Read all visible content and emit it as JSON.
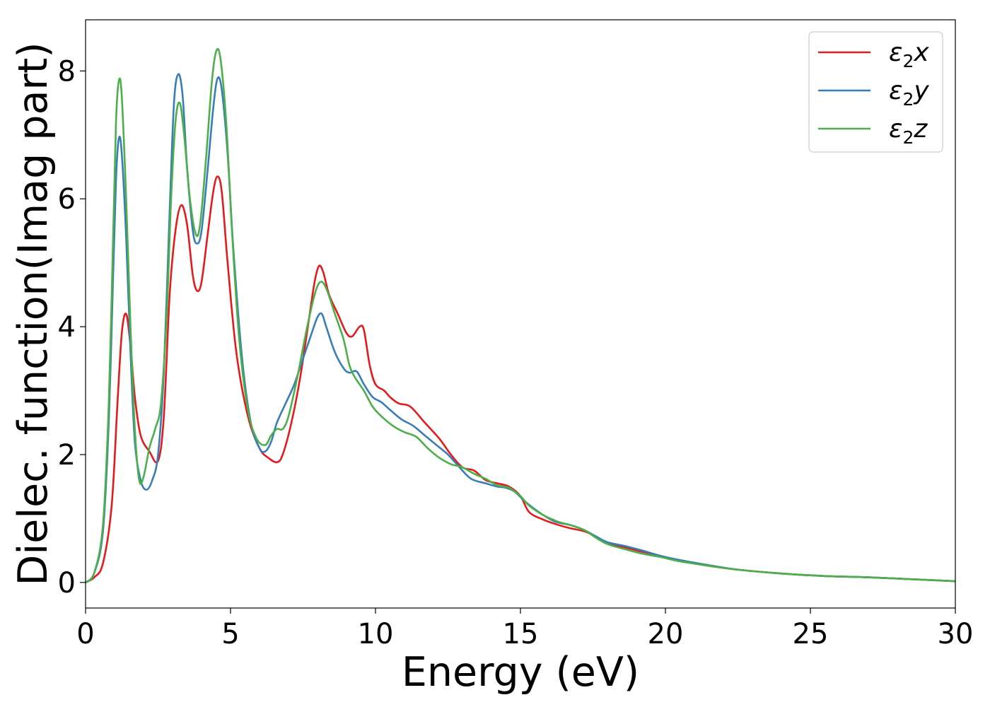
{
  "chart_data": {
    "type": "line",
    "xlabel": "Energy (eV)",
    "ylabel": "Dielec. function(Imag part)",
    "xlim": [
      0,
      30
    ],
    "ylim": [
      -0.4,
      8.8
    ],
    "x_ticks": [
      0,
      5,
      10,
      15,
      20,
      25,
      30
    ],
    "y_ticks": [
      0,
      2,
      4,
      6,
      8
    ],
    "grid": false,
    "legend_position": "top-right",
    "series": [
      {
        "name": "ε₂x",
        "legend_base": "ε",
        "legend_sub": "2",
        "legend_var": "x",
        "color": "#e41a1c",
        "points": [
          [
            0,
            0
          ],
          [
            0.3,
            0.08
          ],
          [
            0.6,
            0.3
          ],
          [
            0.9,
            1.2
          ],
          [
            1.1,
            2.8
          ],
          [
            1.25,
            3.9
          ],
          [
            1.4,
            4.2
          ],
          [
            1.55,
            3.7
          ],
          [
            1.7,
            2.9
          ],
          [
            1.9,
            2.3
          ],
          [
            2.2,
            2.05
          ],
          [
            2.5,
            1.9
          ],
          [
            2.7,
            2.6
          ],
          [
            2.9,
            4.5
          ],
          [
            3.1,
            5.5
          ],
          [
            3.3,
            5.9
          ],
          [
            3.5,
            5.6
          ],
          [
            3.7,
            4.8
          ],
          [
            3.85,
            4.56
          ],
          [
            4.0,
            4.7
          ],
          [
            4.2,
            5.4
          ],
          [
            4.4,
            6.1
          ],
          [
            4.55,
            6.35
          ],
          [
            4.7,
            6.1
          ],
          [
            4.9,
            5.0
          ],
          [
            5.2,
            3.6
          ],
          [
            5.6,
            2.6
          ],
          [
            6.0,
            2.1
          ],
          [
            6.3,
            1.95
          ],
          [
            6.6,
            1.88
          ],
          [
            6.8,
            2.0
          ],
          [
            7.1,
            2.5
          ],
          [
            7.4,
            3.2
          ],
          [
            7.7,
            4.1
          ],
          [
            7.9,
            4.7
          ],
          [
            8.05,
            4.95
          ],
          [
            8.2,
            4.85
          ],
          [
            8.4,
            4.5
          ],
          [
            8.7,
            4.2
          ],
          [
            9.0,
            3.9
          ],
          [
            9.2,
            3.85
          ],
          [
            9.45,
            4.0
          ],
          [
            9.6,
            3.95
          ],
          [
            9.8,
            3.4
          ],
          [
            10.0,
            3.1
          ],
          [
            10.3,
            3.0
          ],
          [
            10.5,
            2.9
          ],
          [
            10.8,
            2.8
          ],
          [
            11.2,
            2.75
          ],
          [
            11.7,
            2.5
          ],
          [
            12.2,
            2.25
          ],
          [
            12.6,
            2.0
          ],
          [
            13.0,
            1.8
          ],
          [
            13.4,
            1.75
          ],
          [
            13.8,
            1.6
          ],
          [
            14.2,
            1.55
          ],
          [
            14.6,
            1.5
          ],
          [
            15.0,
            1.35
          ],
          [
            15.3,
            1.1
          ],
          [
            15.8,
            0.98
          ],
          [
            16.3,
            0.9
          ],
          [
            16.7,
            0.85
          ],
          [
            17.2,
            0.8
          ],
          [
            17.6,
            0.72
          ],
          [
            18.0,
            0.62
          ],
          [
            18.6,
            0.55
          ],
          [
            19.2,
            0.48
          ],
          [
            19.8,
            0.42
          ],
          [
            20.5,
            0.34
          ],
          [
            21.5,
            0.26
          ],
          [
            22.5,
            0.2
          ],
          [
            24,
            0.14
          ],
          [
            25.5,
            0.1
          ],
          [
            27,
            0.08
          ],
          [
            28.5,
            0.05
          ],
          [
            30,
            0.02
          ]
        ]
      },
      {
        "name": "ε₂y",
        "legend_base": "ε",
        "legend_sub": "2",
        "legend_var": "y",
        "color": "#377eb8",
        "points": [
          [
            0,
            0
          ],
          [
            0.3,
            0.15
          ],
          [
            0.6,
            0.8
          ],
          [
            0.8,
            2.5
          ],
          [
            0.95,
            4.8
          ],
          [
            1.05,
            6.3
          ],
          [
            1.15,
            6.95
          ],
          [
            1.25,
            6.7
          ],
          [
            1.4,
            5.4
          ],
          [
            1.55,
            3.6
          ],
          [
            1.7,
            2.2
          ],
          [
            1.9,
            1.6
          ],
          [
            2.1,
            1.45
          ],
          [
            2.3,
            1.6
          ],
          [
            2.5,
            2.0
          ],
          [
            2.7,
            3.3
          ],
          [
            2.9,
            5.8
          ],
          [
            3.05,
            7.5
          ],
          [
            3.2,
            7.95
          ],
          [
            3.35,
            7.6
          ],
          [
            3.5,
            6.5
          ],
          [
            3.7,
            5.5
          ],
          [
            3.85,
            5.3
          ],
          [
            4.0,
            5.5
          ],
          [
            4.2,
            6.4
          ],
          [
            4.4,
            7.4
          ],
          [
            4.55,
            7.88
          ],
          [
            4.7,
            7.7
          ],
          [
            4.9,
            6.7
          ],
          [
            5.1,
            5.2
          ],
          [
            5.4,
            3.5
          ],
          [
            5.7,
            2.5
          ],
          [
            6.0,
            2.1
          ],
          [
            6.2,
            2.05
          ],
          [
            6.4,
            2.2
          ],
          [
            6.6,
            2.5
          ],
          [
            6.9,
            2.8
          ],
          [
            7.2,
            3.1
          ],
          [
            7.5,
            3.5
          ],
          [
            7.8,
            3.9
          ],
          [
            8.0,
            4.15
          ],
          [
            8.15,
            4.2
          ],
          [
            8.3,
            4.0
          ],
          [
            8.6,
            3.6
          ],
          [
            8.9,
            3.35
          ],
          [
            9.1,
            3.28
          ],
          [
            9.35,
            3.3
          ],
          [
            9.6,
            3.1
          ],
          [
            9.9,
            2.9
          ],
          [
            10.2,
            2.82
          ],
          [
            10.5,
            2.7
          ],
          [
            10.9,
            2.55
          ],
          [
            11.3,
            2.45
          ],
          [
            11.7,
            2.3
          ],
          [
            12.1,
            2.15
          ],
          [
            12.5,
            2.0
          ],
          [
            12.9,
            1.8
          ],
          [
            13.3,
            1.62
          ],
          [
            13.8,
            1.55
          ],
          [
            14.2,
            1.5
          ],
          [
            14.5,
            1.48
          ],
          [
            14.8,
            1.42
          ],
          [
            15.2,
            1.25
          ],
          [
            15.7,
            1.08
          ],
          [
            16.2,
            0.95
          ],
          [
            16.7,
            0.9
          ],
          [
            17.2,
            0.82
          ],
          [
            17.6,
            0.72
          ],
          [
            18.0,
            0.63
          ],
          [
            18.6,
            0.57
          ],
          [
            19.2,
            0.5
          ],
          [
            19.8,
            0.42
          ],
          [
            20.5,
            0.35
          ],
          [
            21.5,
            0.27
          ],
          [
            22.5,
            0.2
          ],
          [
            24,
            0.14
          ],
          [
            25.5,
            0.1
          ],
          [
            27,
            0.08
          ],
          [
            28.5,
            0.05
          ],
          [
            30,
            0.02
          ]
        ]
      },
      {
        "name": "ε₂z",
        "legend_base": "ε",
        "legend_sub": "2",
        "legend_var": "z",
        "color": "#4daf4a",
        "points": [
          [
            0,
            0
          ],
          [
            0.3,
            0.15
          ],
          [
            0.6,
            0.9
          ],
          [
            0.8,
            2.8
          ],
          [
            0.95,
            5.4
          ],
          [
            1.05,
            7.2
          ],
          [
            1.15,
            7.85
          ],
          [
            1.25,
            7.6
          ],
          [
            1.4,
            6.0
          ],
          [
            1.55,
            4.0
          ],
          [
            1.7,
            2.4
          ],
          [
            1.85,
            1.6
          ],
          [
            2.0,
            1.65
          ],
          [
            2.2,
            2.1
          ],
          [
            2.4,
            2.4
          ],
          [
            2.6,
            2.8
          ],
          [
            2.8,
            4.2
          ],
          [
            2.95,
            6.0
          ],
          [
            3.1,
            7.2
          ],
          [
            3.25,
            7.5
          ],
          [
            3.4,
            7.0
          ],
          [
            3.6,
            6.0
          ],
          [
            3.8,
            5.45
          ],
          [
            3.95,
            5.6
          ],
          [
            4.15,
            6.6
          ],
          [
            4.35,
            7.8
          ],
          [
            4.5,
            8.3
          ],
          [
            4.65,
            8.2
          ],
          [
            4.85,
            7.2
          ],
          [
            5.05,
            5.5
          ],
          [
            5.3,
            3.8
          ],
          [
            5.6,
            2.7
          ],
          [
            5.9,
            2.25
          ],
          [
            6.2,
            2.15
          ],
          [
            6.4,
            2.3
          ],
          [
            6.6,
            2.4
          ],
          [
            6.8,
            2.4
          ],
          [
            7.0,
            2.6
          ],
          [
            7.3,
            3.2
          ],
          [
            7.6,
            3.9
          ],
          [
            7.9,
            4.5
          ],
          [
            8.1,
            4.7
          ],
          [
            8.3,
            4.6
          ],
          [
            8.6,
            4.2
          ],
          [
            8.9,
            3.8
          ],
          [
            9.1,
            3.4
          ],
          [
            9.3,
            3.2
          ],
          [
            9.6,
            3.0
          ],
          [
            9.9,
            2.75
          ],
          [
            10.2,
            2.6
          ],
          [
            10.6,
            2.45
          ],
          [
            11.0,
            2.35
          ],
          [
            11.4,
            2.28
          ],
          [
            11.8,
            2.1
          ],
          [
            12.2,
            1.95
          ],
          [
            12.6,
            1.85
          ],
          [
            13.0,
            1.8
          ],
          [
            13.4,
            1.7
          ],
          [
            13.8,
            1.62
          ],
          [
            14.2,
            1.52
          ],
          [
            14.6,
            1.48
          ],
          [
            15.0,
            1.35
          ],
          [
            15.3,
            1.2
          ],
          [
            15.8,
            1.05
          ],
          [
            16.3,
            0.95
          ],
          [
            16.7,
            0.9
          ],
          [
            17.2,
            0.82
          ],
          [
            17.6,
            0.7
          ],
          [
            18.0,
            0.6
          ],
          [
            18.6,
            0.52
          ],
          [
            19.2,
            0.45
          ],
          [
            19.8,
            0.4
          ],
          [
            20.5,
            0.33
          ],
          [
            21.5,
            0.26
          ],
          [
            22.5,
            0.2
          ],
          [
            24,
            0.14
          ],
          [
            25.5,
            0.1
          ],
          [
            27,
            0.08
          ],
          [
            28.5,
            0.05
          ],
          [
            30,
            0.02
          ]
        ]
      }
    ]
  }
}
